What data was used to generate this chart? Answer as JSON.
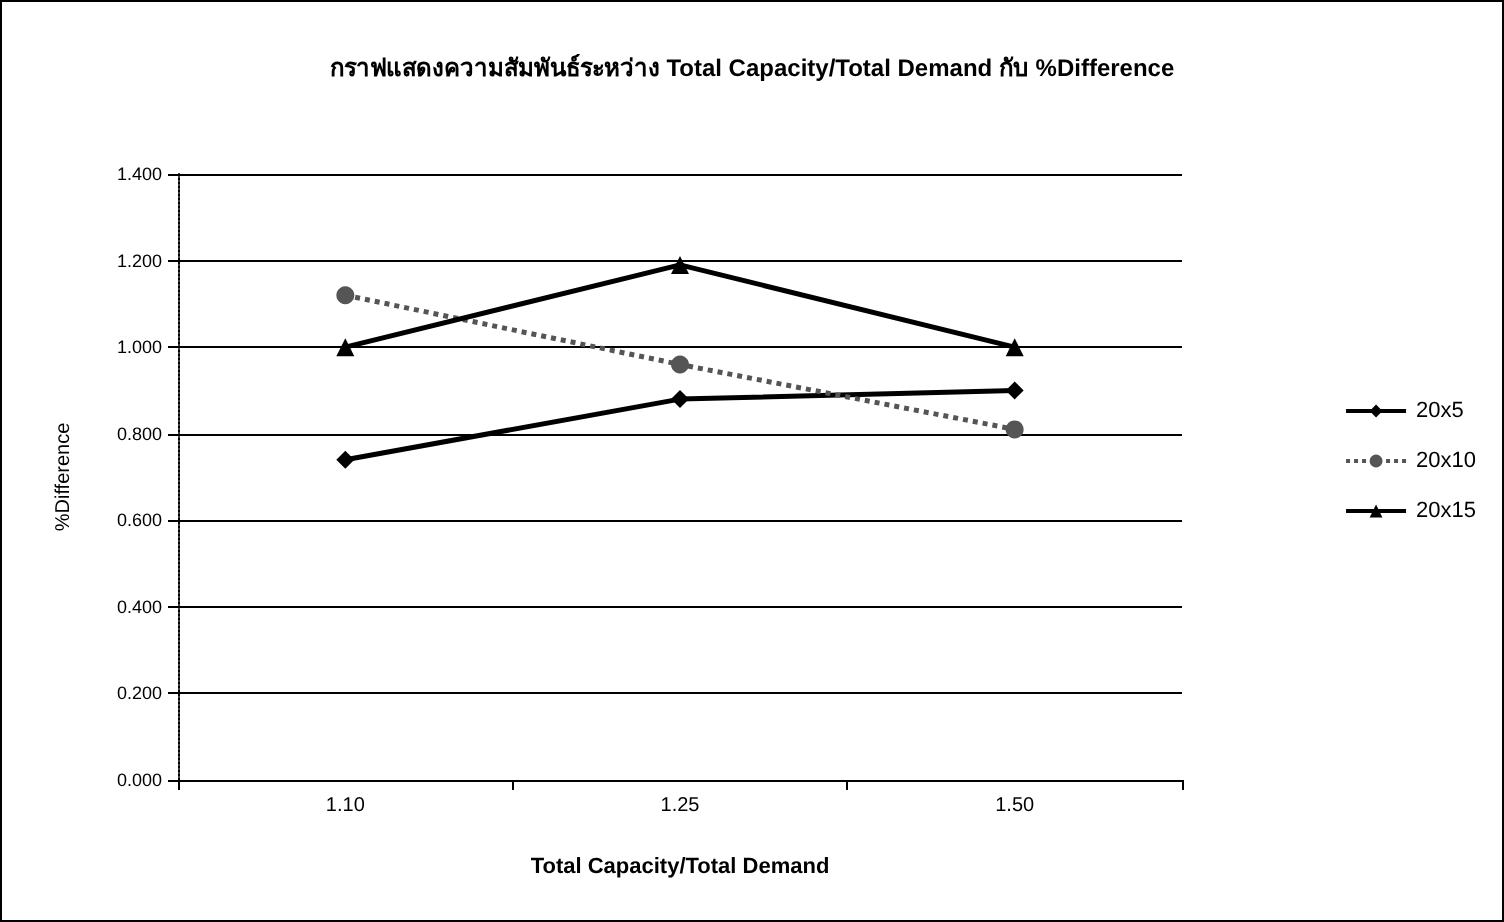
{
  "chart_data": {
    "type": "line",
    "title": "กราฟแสดงความสัมพันธ์ระหว่าง Total Capacity/Total Demand กับ %Difference",
    "xlabel": "Total Capacity/Total Demand",
    "ylabel": "%Difference",
    "categories": [
      "1.10",
      "1.25",
      "1.50"
    ],
    "series": [
      {
        "name": "20x5",
        "color": "#000000",
        "marker": "diamond",
        "line_style": "solid",
        "values": [
          0.74,
          0.88,
          0.9
        ]
      },
      {
        "name": "20x10",
        "color": "#555555",
        "marker": "circle",
        "line_style": "dotted",
        "values": [
          1.12,
          0.96,
          0.81
        ]
      },
      {
        "name": "20x15",
        "color": "#000000",
        "marker": "triangle",
        "line_style": "solid",
        "values": [
          1.0,
          1.19,
          1.0
        ]
      }
    ],
    "ylim": [
      0,
      1.4
    ],
    "yticks": [
      {
        "value": 0,
        "label": "0.000"
      },
      {
        "value": 0.2,
        "label": "0.200"
      },
      {
        "value": 0.4,
        "label": "0.400"
      },
      {
        "value": 0.6,
        "label": "0.600"
      },
      {
        "value": 0.8,
        "label": "0.800"
      },
      {
        "value": 1.0,
        "label": "1.000"
      },
      {
        "value": 1.2,
        "label": "1.200"
      },
      {
        "value": 1.4,
        "label": "1.400"
      }
    ],
    "grid": "y",
    "legend": "right"
  }
}
